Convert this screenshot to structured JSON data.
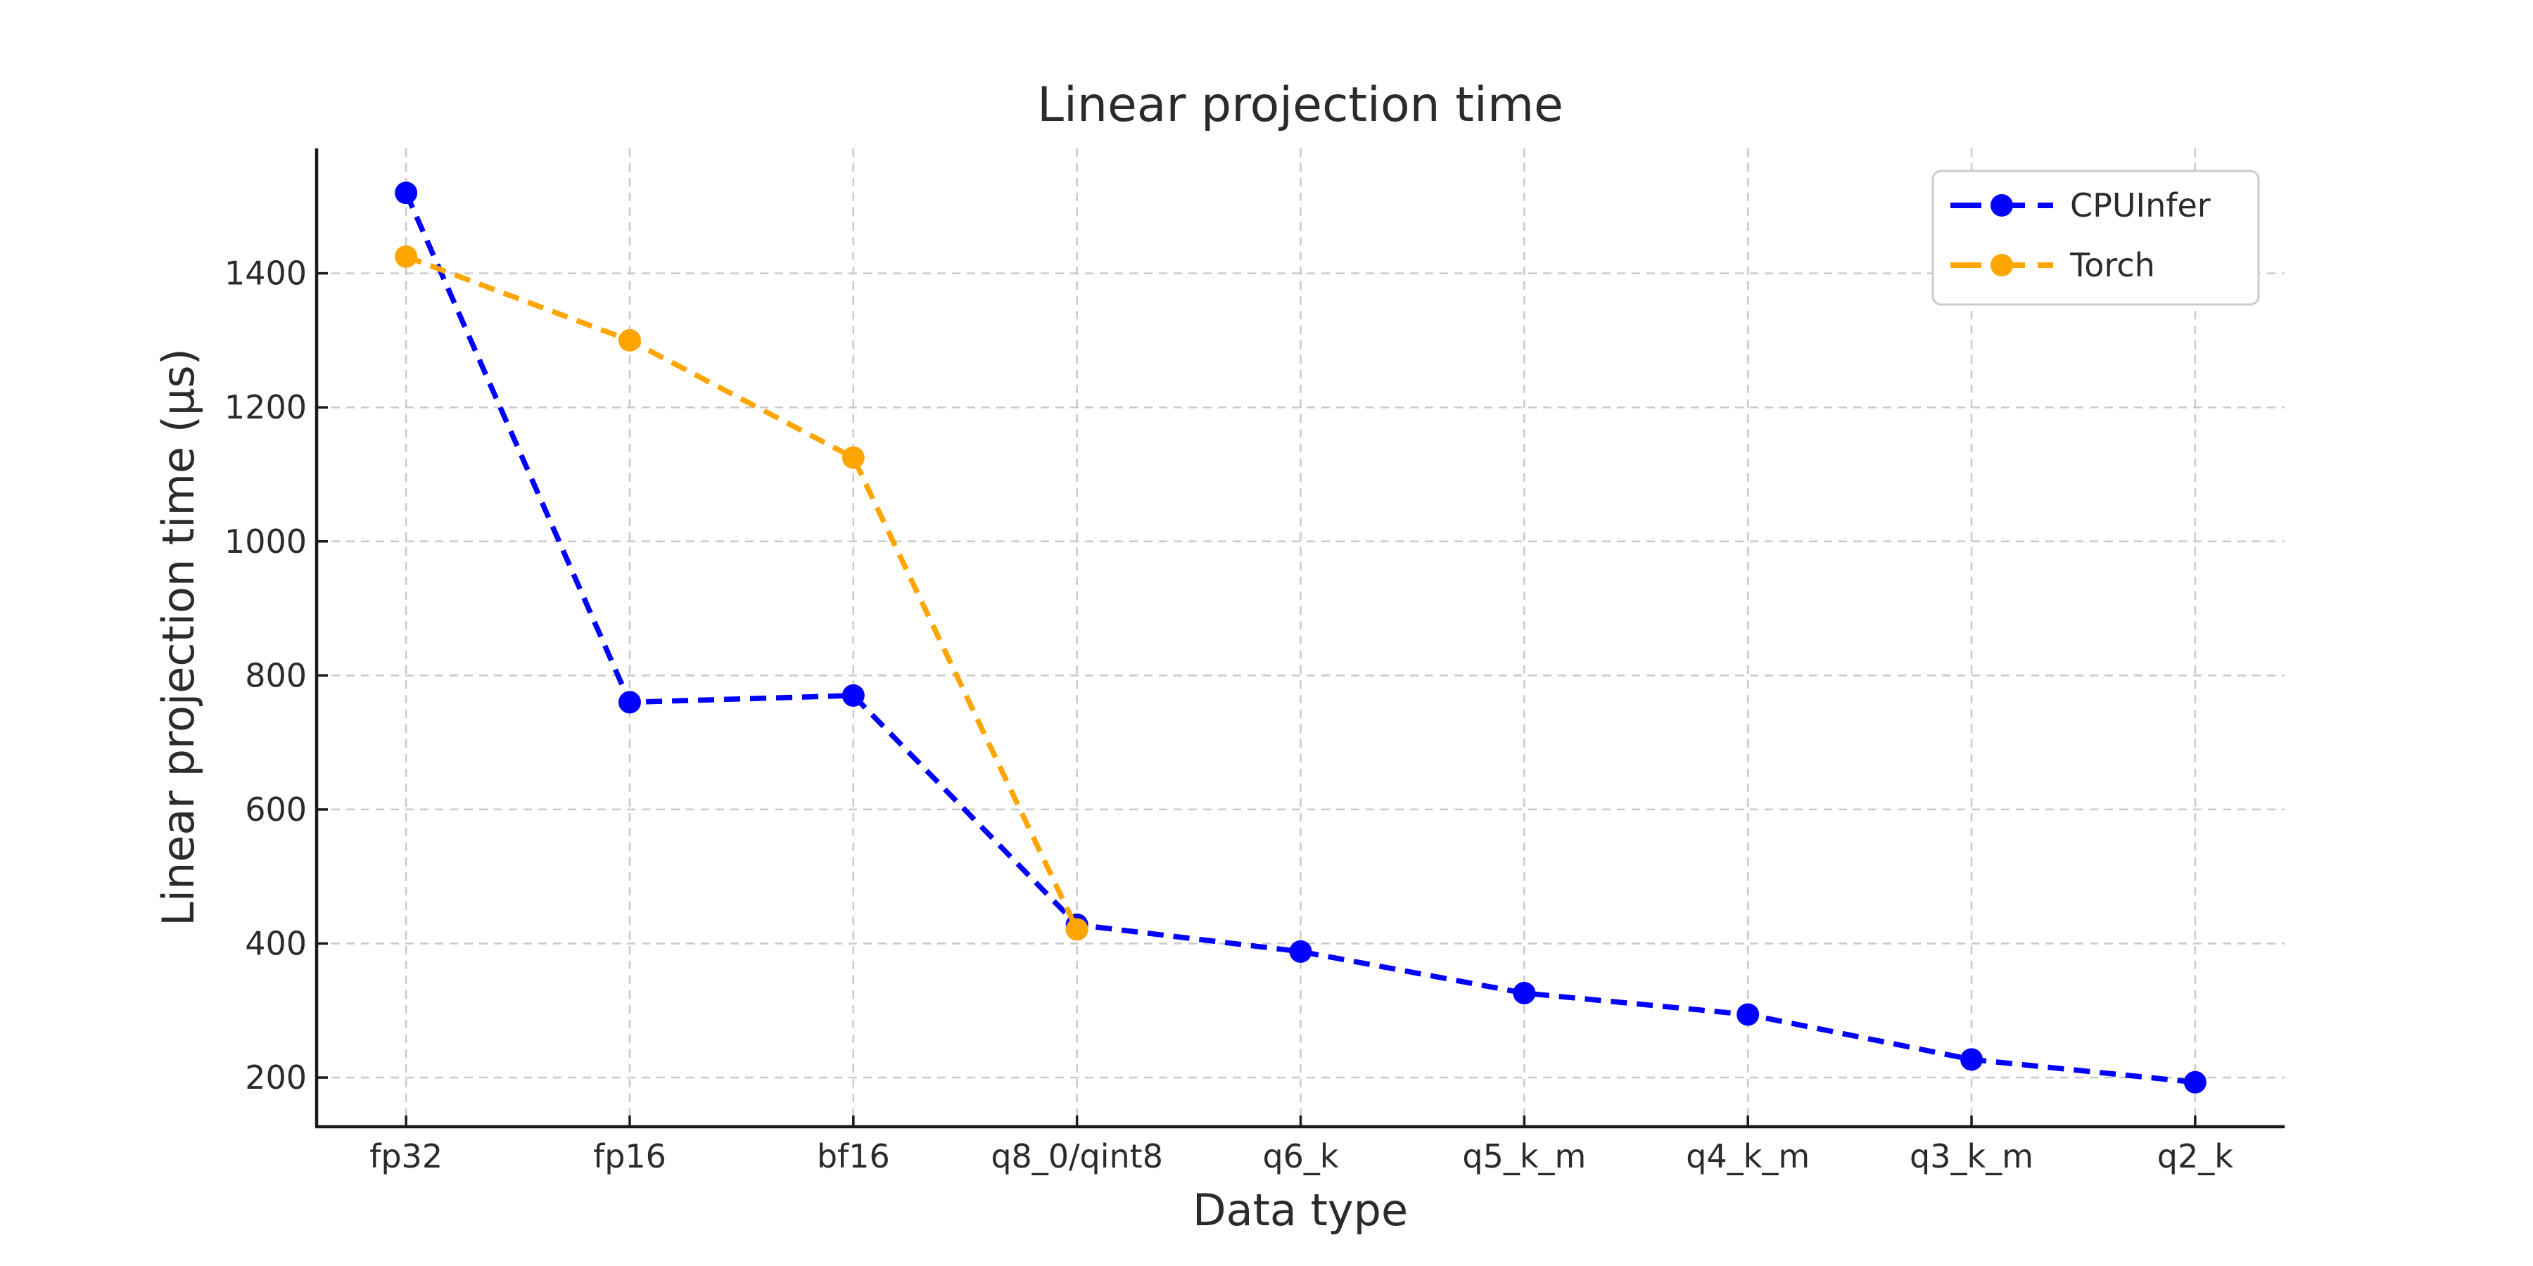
{
  "chart_data": {
    "type": "line",
    "title": "Linear projection time",
    "xlabel": "Data type",
    "ylabel": "Linear projection time (μs)",
    "categories": [
      "fp32",
      "fp16",
      "bf16",
      "q8_0/qint8",
      "q6_k",
      "q5_k_m",
      "q4_k_m",
      "q3_k_m",
      "q2_k"
    ],
    "series": [
      {
        "name": "CPUInfer",
        "color": "#0000ff",
        "values": [
          1520,
          760,
          770,
          428,
          388,
          326,
          294,
          227,
          193
        ]
      },
      {
        "name": "Torch",
        "color": "#ffa500",
        "values": [
          1425,
          1300,
          1125,
          421,
          null,
          null,
          null,
          null,
          null
        ]
      }
    ],
    "yticks": [
      200,
      400,
      600,
      800,
      1000,
      1200,
      1400
    ],
    "ylim": [
      126.6,
      1586.4
    ],
    "xlim": [
      -0.4,
      8.4
    ],
    "grid": {
      "visible": true,
      "style": "dashed",
      "color": "#c9c9c9"
    },
    "legend": {
      "position": "upper-right",
      "border_color": "#cccccc",
      "background": "#ffffff"
    },
    "line_style": "dashed",
    "marker": "circle",
    "colors": {
      "text": "#2b2b2b",
      "spine": "#1a1a1a"
    }
  }
}
